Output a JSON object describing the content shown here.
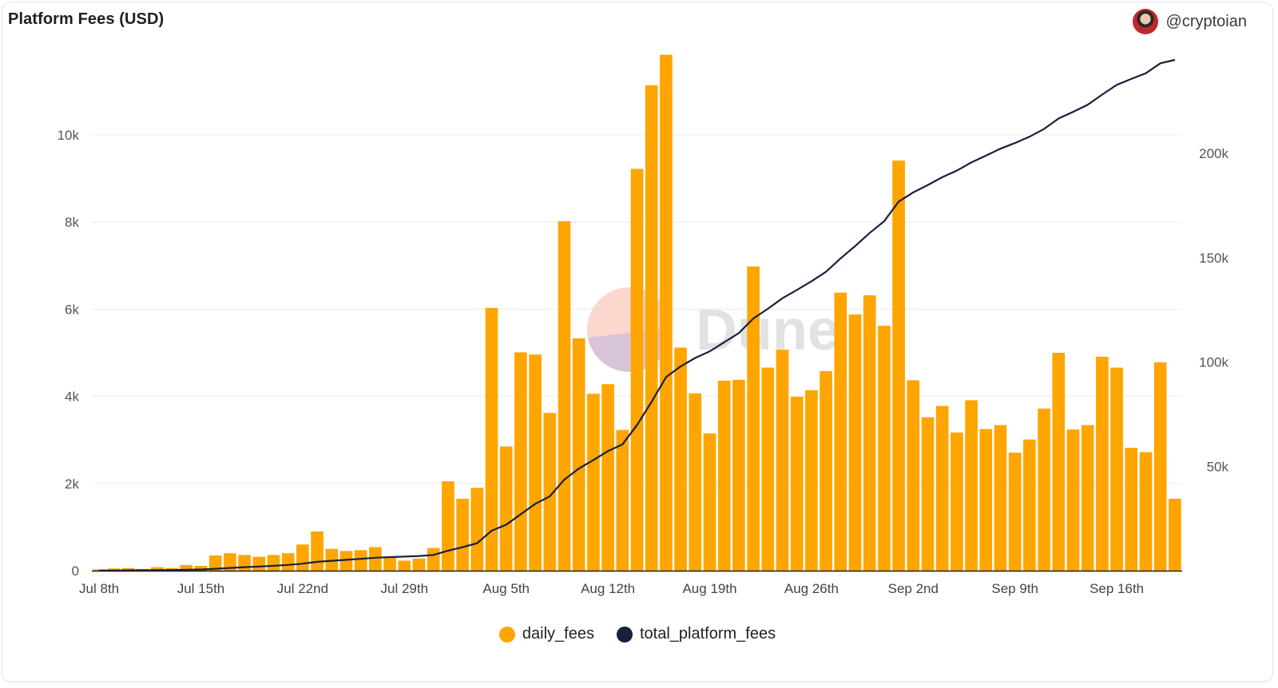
{
  "header": {
    "title": "Platform Fees (USD)",
    "author": "@cryptoian",
    "avatar_icon": "avatar-icon"
  },
  "watermark": {
    "text": "Dune"
  },
  "legend": [
    {
      "label": "daily_fees",
      "color": "#FFA500"
    },
    {
      "label": "total_platform_fees",
      "color": "#1a1f3d"
    }
  ],
  "chart_data": {
    "type": "bar",
    "title": "Platform Fees (USD)",
    "x_tick_labels": [
      "Jul 8th",
      "Jul 15th",
      "Jul 22nd",
      "Jul 29th",
      "Aug 5th",
      "Aug 12th",
      "Aug 19th",
      "Aug 26th",
      "Sep 2nd",
      "Sep 9th",
      "Sep 16th"
    ],
    "y_left": {
      "ylim": [
        0,
        11800
      ],
      "ticks": [
        0,
        2000,
        4000,
        6000,
        8000,
        10000
      ],
      "tick_labels": [
        "0",
        "2k",
        "4k",
        "6k",
        "8k",
        "10k"
      ]
    },
    "y_right": {
      "ylim": [
        0,
        252000
      ],
      "ticks": [
        50000,
        100000,
        150000,
        200000
      ],
      "tick_labels": [
        "50k",
        "100k",
        "150k",
        "200k"
      ]
    },
    "x_start": "2024-07-08",
    "series": [
      {
        "name": "daily_fees",
        "type": "bar",
        "axis": "left",
        "color": "#FFA500",
        "values": [
          30,
          50,
          60,
          40,
          80,
          60,
          130,
          110,
          350,
          400,
          360,
          320,
          360,
          400,
          600,
          900,
          500,
          450,
          470,
          540,
          300,
          230,
          280,
          520,
          2050,
          1650,
          1900,
          6030,
          2850,
          5010,
          4960,
          3620,
          8020,
          5330,
          4060,
          4280,
          3230,
          9220,
          11140,
          11840,
          5120,
          4070,
          3150,
          4360,
          4380,
          6980,
          4660,
          5070,
          3990,
          4140,
          4580,
          6380,
          5880,
          6320,
          5620,
          9410,
          4370,
          3520,
          3780,
          3170,
          3910,
          3250,
          3340,
          2710,
          3010,
          3720,
          5000,
          3240,
          3340,
          4910,
          4660,
          2820,
          2720,
          4780,
          1650
        ]
      },
      {
        "name": "total_platform_fees",
        "type": "line",
        "axis": "right",
        "color": "#1a1f3d",
        "values": [
          30,
          80,
          140,
          180,
          260,
          320,
          450,
          560,
          910,
          1310,
          1670,
          1990,
          2350,
          2750,
          3350,
          4250,
          4750,
          5200,
          5670,
          6210,
          6510,
          6740,
          7020,
          7540,
          9590,
          11240,
          13140,
          19170,
          22020,
          27030,
          31990,
          35610,
          43630,
          48960,
          53020,
          57300,
          60530,
          69750,
          80890,
          92730,
          97850,
          101920,
          105070,
          109430,
          113810,
          120790,
          125450,
          130520,
          134510,
          138650,
          143230,
          149610,
          155490,
          161810,
          167430,
          176840,
          181210,
          184730,
          188510,
          191680,
          195590,
          198840,
          202180,
          204890,
          207900,
          211620,
          216620,
          219860,
          223200,
          228110,
          232770,
          235590,
          238310,
          243090,
          244740
        ]
      }
    ]
  }
}
